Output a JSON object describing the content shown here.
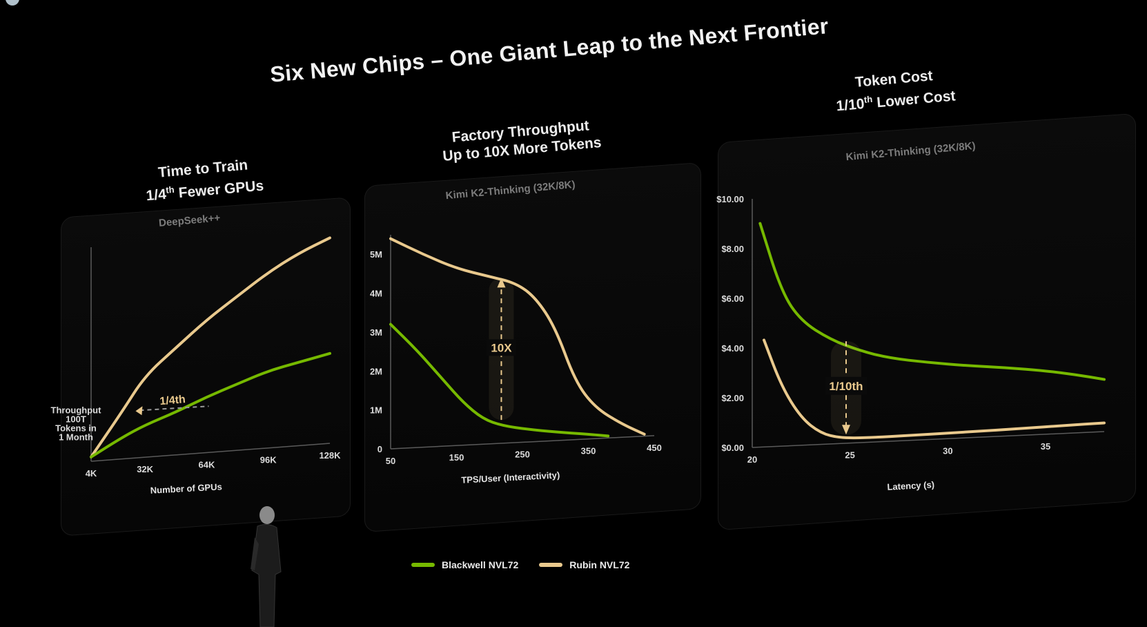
{
  "title": "Six New Chips – One Giant Leap to the Next Frontier",
  "colors": {
    "blackwell": "#76b900",
    "rubin": "#e9c98d",
    "background": "#000000"
  },
  "panels": [
    {
      "title": "Time to Train",
      "subtitle_pre": "1/4",
      "subtitle_sup": "th",
      "subtitle_post": " Fewer GPUs"
    },
    {
      "title": "Factory Throughput",
      "subtitle": "Up to 10X More Tokens"
    },
    {
      "title": "Token Cost",
      "subtitle_pre": "1/10",
      "subtitle_sup": "th",
      "subtitle_post": " Lower Cost"
    }
  ],
  "legend": [
    {
      "name": "Blackwell NVL72",
      "color": "#76b900"
    },
    {
      "name": "Rubin NVL72",
      "color": "#e9c98d"
    }
  ],
  "chart_data": [
    {
      "type": "line",
      "title": "DeepSeek++",
      "xlabel": "Number of GPUs",
      "ylabel": "Throughput 100T Tokens in 1 Month",
      "x": [
        4,
        32,
        64,
        96,
        128
      ],
      "x_unit_label": "K",
      "xticks": [
        "4K",
        "32K",
        "64K",
        "96K",
        "128K"
      ],
      "xlim": [
        4,
        128
      ],
      "ylim": [
        0,
        1
      ],
      "annotation": {
        "text": "1/4",
        "sup": "th"
      },
      "series": [
        {
          "name": "Rubin NVL72",
          "color": "#e9c98d",
          "points": [
            [
              4,
              0.02
            ],
            [
              20,
              0.22
            ],
            [
              32,
              0.38
            ],
            [
              48,
              0.5
            ],
            [
              64,
              0.62
            ],
            [
              80,
              0.72
            ],
            [
              96,
              0.82
            ],
            [
              112,
              0.9
            ],
            [
              128,
              0.96
            ]
          ]
        },
        {
          "name": "Blackwell NVL72",
          "color": "#76b900",
          "points": [
            [
              4,
              0.02
            ],
            [
              20,
              0.1
            ],
            [
              32,
              0.15
            ],
            [
              48,
              0.2
            ],
            [
              64,
              0.26
            ],
            [
              80,
              0.31
            ],
            [
              96,
              0.36
            ],
            [
              112,
              0.39
            ],
            [
              128,
              0.42
            ]
          ]
        }
      ]
    },
    {
      "type": "line",
      "title": "Kimi K2-Thinking (32K/8K)",
      "xlabel": "TPS/User (Interactivity)",
      "xticks": [
        "50",
        "150",
        "250",
        "350",
        "450"
      ],
      "yticks": [
        "0",
        "1M",
        "2M",
        "3M",
        "4M",
        "5M"
      ],
      "xlim": [
        50,
        450
      ],
      "ylim": [
        0,
        5.5
      ],
      "annotation": {
        "text": "10X"
      },
      "series": [
        {
          "name": "Rubin NVL72",
          "color": "#e9c98d",
          "points": [
            [
              50,
              5.4
            ],
            [
              100,
              4.95
            ],
            [
              150,
              4.55
            ],
            [
              200,
              4.3
            ],
            [
              240,
              4.1
            ],
            [
              270,
              3.7
            ],
            [
              300,
              2.9
            ],
            [
              330,
              1.5
            ],
            [
              360,
              0.8
            ],
            [
              400,
              0.35
            ],
            [
              435,
              0.05
            ]
          ]
        },
        {
          "name": "Blackwell NVL72",
          "color": "#76b900",
          "points": [
            [
              50,
              3.2
            ],
            [
              90,
              2.5
            ],
            [
              130,
              1.7
            ],
            [
              160,
              1.1
            ],
            [
              190,
              0.65
            ],
            [
              220,
              0.45
            ],
            [
              260,
              0.32
            ],
            [
              300,
              0.22
            ],
            [
              350,
              0.12
            ],
            [
              380,
              0.05
            ]
          ]
        }
      ]
    },
    {
      "type": "line",
      "title": "Kimi K2-Thinking (32K/8K)",
      "xlabel": "Latency (s)",
      "xticks": [
        "20",
        "25",
        "30",
        "35"
      ],
      "yticks": [
        "$0.00",
        "$2.00",
        "$4.00",
        "$6.00",
        "$8.00",
        "$10.00"
      ],
      "xlim": [
        20,
        38
      ],
      "ylim": [
        0,
        10
      ],
      "annotation": {
        "text": "1/10",
        "sup": "th"
      },
      "series": [
        {
          "name": "Blackwell NVL72",
          "color": "#76b900",
          "points": [
            [
              20.4,
              9.0
            ],
            [
              21.5,
              6.2
            ],
            [
              22.5,
              5.0
            ],
            [
              24,
              4.2
            ],
            [
              25.5,
              3.7
            ],
            [
              27,
              3.35
            ],
            [
              29,
              3.1
            ],
            [
              31,
              2.9
            ],
            [
              33,
              2.75
            ],
            [
              35,
              2.55
            ],
            [
              36.5,
              2.35
            ],
            [
              38,
              2.1
            ]
          ]
        },
        {
          "name": "Rubin NVL72",
          "color": "#e9c98d",
          "points": [
            [
              20.6,
              4.3
            ],
            [
              21.5,
              2.4
            ],
            [
              22.5,
              1.1
            ],
            [
              23.5,
              0.45
            ],
            [
              24.5,
              0.22
            ],
            [
              26,
              0.18
            ],
            [
              28,
              0.2
            ],
            [
              31,
              0.23
            ],
            [
              34,
              0.28
            ],
            [
              36,
              0.32
            ],
            [
              38,
              0.35
            ]
          ]
        }
      ]
    }
  ]
}
